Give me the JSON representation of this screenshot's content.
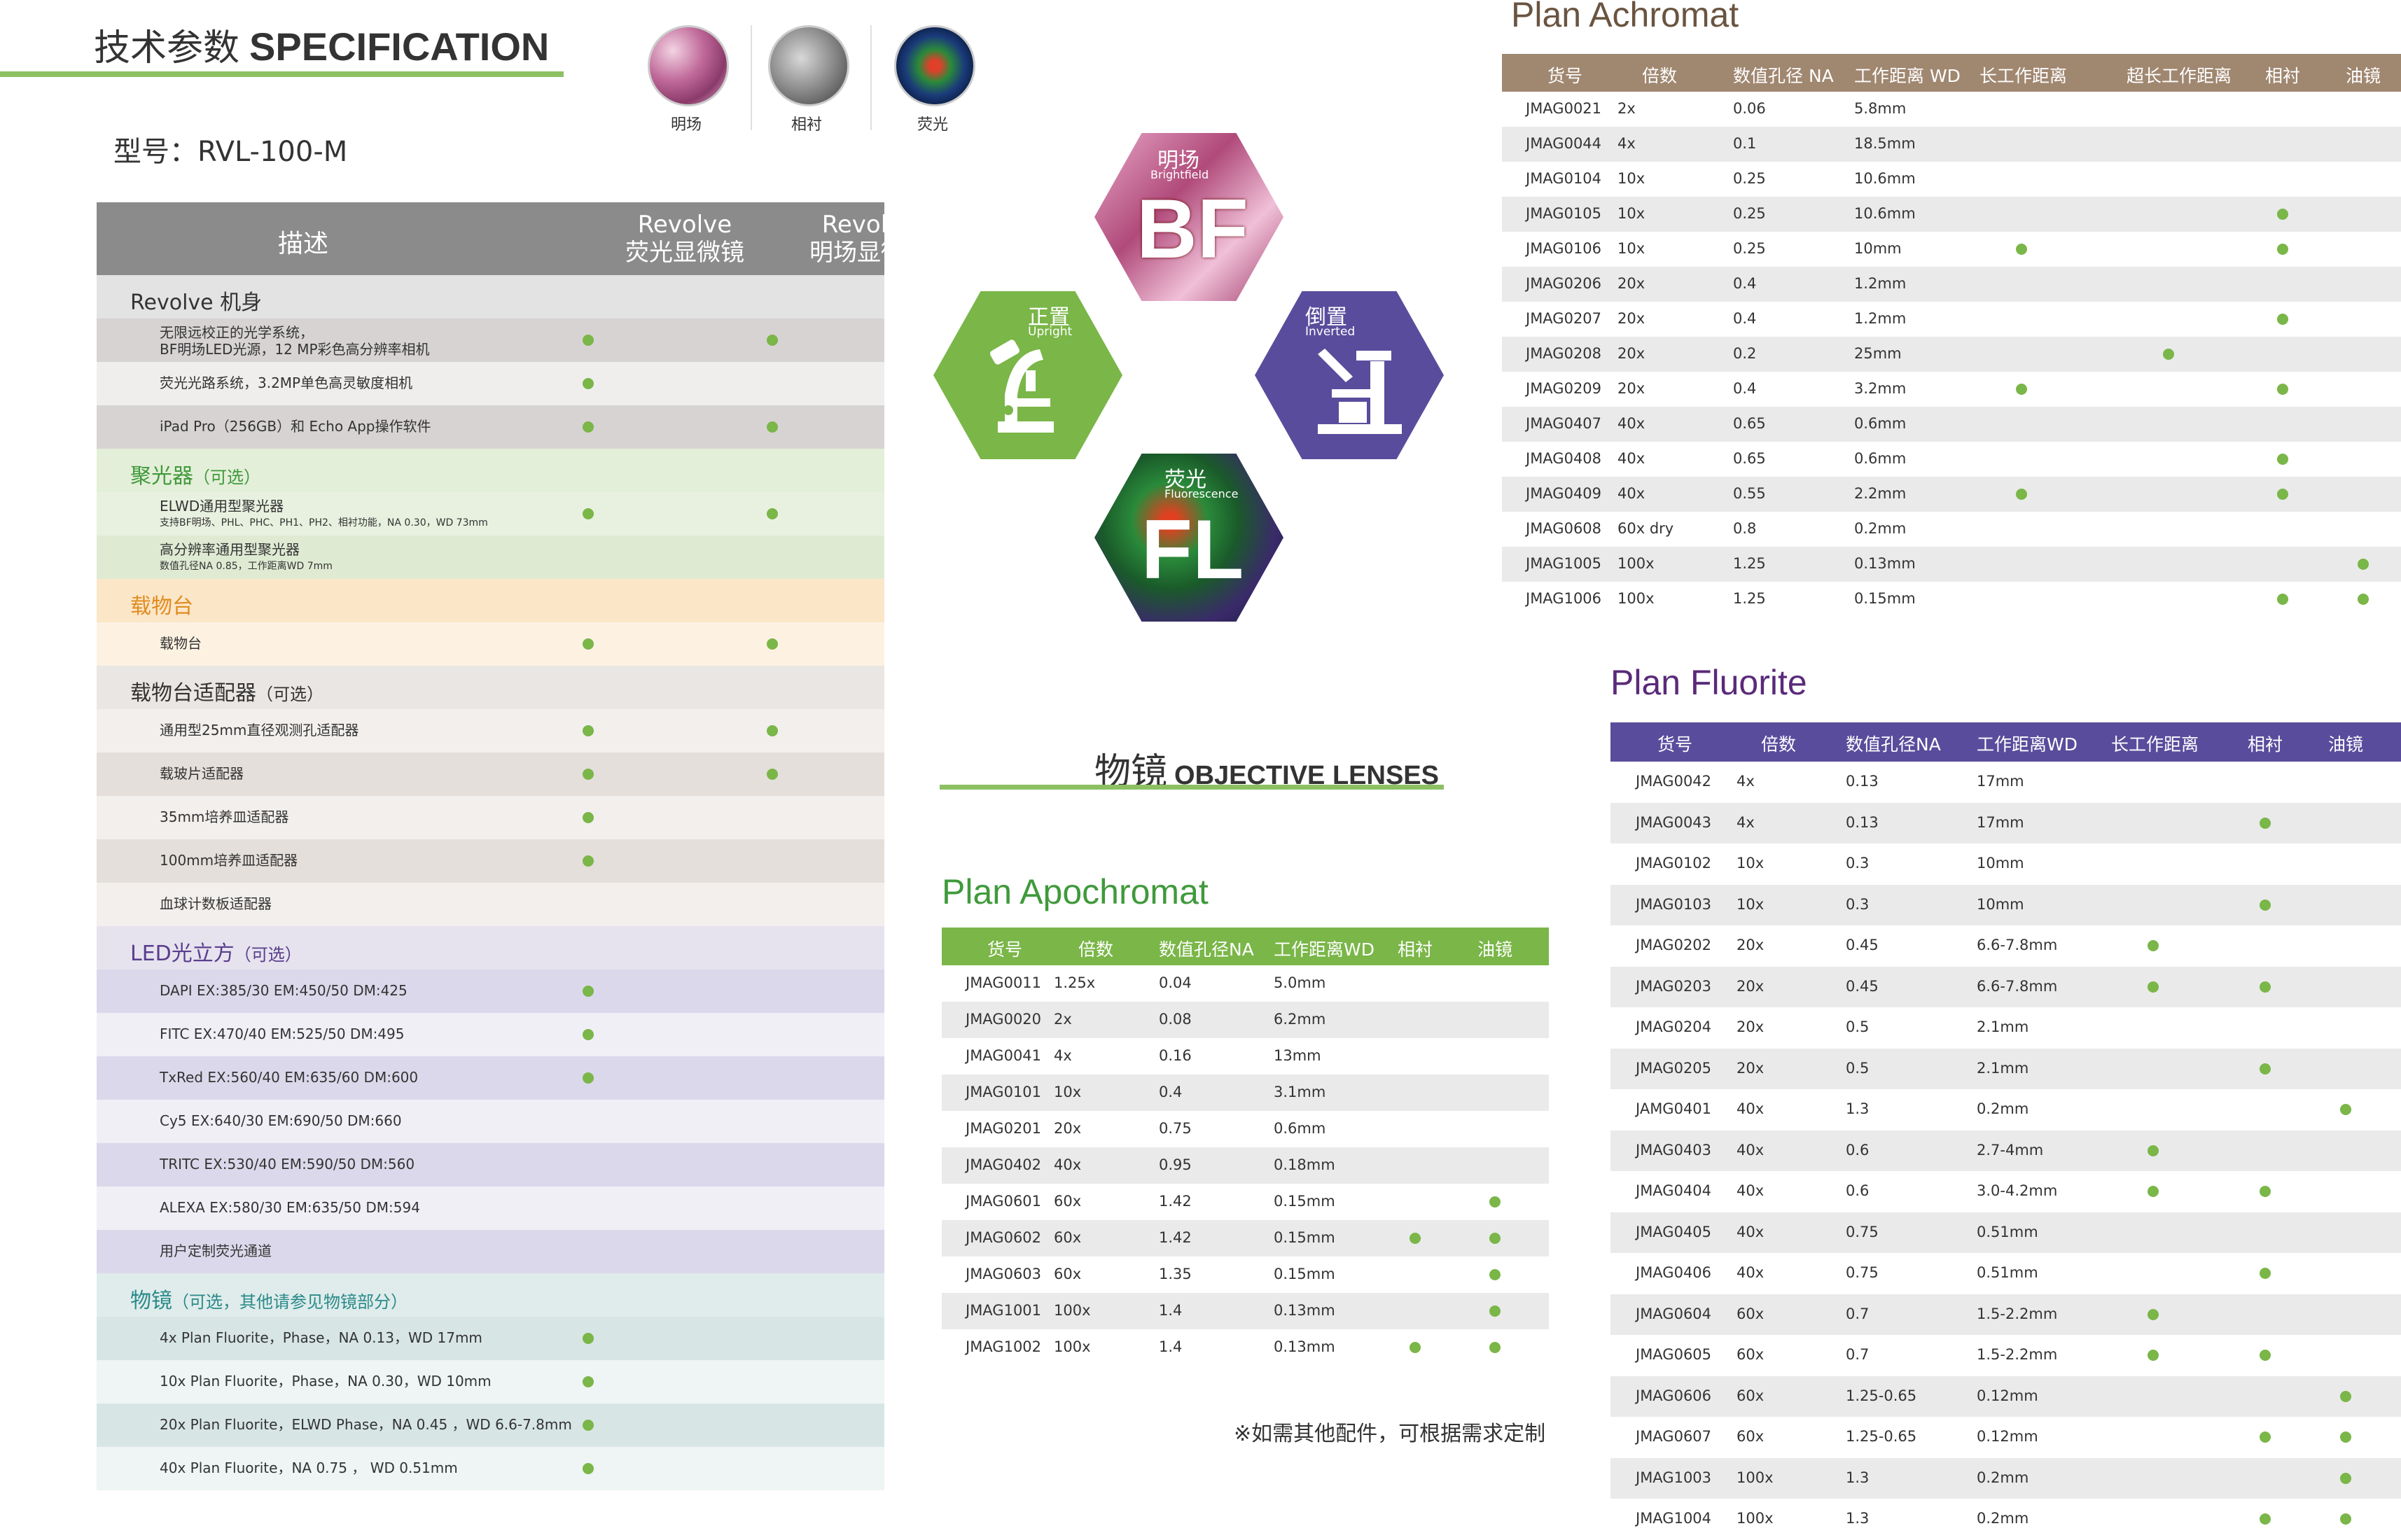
{
  "spec": {
    "title_cn": "技术参数",
    "title_en": "SPECIFICATION",
    "model": "型号：RVL-100-M",
    "modes": [
      {
        "label": "明场",
        "icon": "brightfield-sample-icon"
      },
      {
        "label": "相衬",
        "icon": "phase-contrast-sample-icon"
      },
      {
        "label": "荧光",
        "icon": "fluorescence-sample-icon"
      }
    ],
    "header": {
      "desc": "描述",
      "col1_line1": "Revolve",
      "col1_line2": "荧光显微镜",
      "col2_line1": "Revolve",
      "col2_line2": "明场显微镜"
    }
  },
  "sections": [
    {
      "title": "Revolve 机身",
      "opt": "",
      "color": "#333333",
      "bg": "#e4e3e3",
      "rows": [
        {
          "text": "无限远校正的光学系统，",
          "text2": "BF明场LED光源，12 MP彩色高分辨率相机",
          "a": true,
          "b": true
        },
        {
          "text": "荧光光路系统，3.2MP单色高灵敏度相机",
          "text2": "",
          "a": true,
          "b": false
        },
        {
          "text": "iPad Pro（256GB）和 Echo App操作软件",
          "text2": "",
          "a": true,
          "b": true
        }
      ]
    },
    {
      "title": "聚光器",
      "opt": "（可选）",
      "color": "#3f9a3b",
      "bg": "#e4efd9",
      "rows": [
        {
          "text": "ELWD通用型聚光器",
          "text2": "支持BF明场、PHL、PHC、PH1、PH2、相衬功能，NA 0.30，WD 73mm",
          "a": true,
          "b": true
        },
        {
          "text": "高分辨率通用型聚光器",
          "text2": "数值孔径NA 0.85，工作距离WD 7mm",
          "a": false,
          "b": false
        }
      ]
    },
    {
      "title": "载物台",
      "opt": "",
      "color": "#e08c20",
      "bg": "#fbe6c8",
      "rows": [
        {
          "text": "载物台",
          "text2": "",
          "a": true,
          "b": true
        }
      ]
    },
    {
      "title": "载物台适配器",
      "opt": "（可选）",
      "color": "#333333",
      "bg": "#eae6e3",
      "rows": [
        {
          "text": "通用型25mm直径观测孔适配器",
          "text2": "",
          "a": true,
          "b": true
        },
        {
          "text": "载玻片适配器",
          "text2": "",
          "a": true,
          "b": true
        },
        {
          "text": "35mm培养皿适配器",
          "text2": "",
          "a": true,
          "b": false
        },
        {
          "text": "100mm培养皿适配器",
          "text2": "",
          "a": true,
          "b": false
        },
        {
          "text": "血球计数板适配器",
          "text2": "",
          "a": false,
          "b": false
        }
      ]
    },
    {
      "title": "LED光立方",
      "opt": "（可选）",
      "color": "#5a3d8c",
      "bg": "#e6e3ef",
      "rows": [
        {
          "text": "DAPI EX:385/30 EM:450/50 DM:425",
          "text2": "",
          "a": true,
          "b": false
        },
        {
          "text": "FITC EX:470/40 EM:525/50 DM:495",
          "text2": "",
          "a": true,
          "b": false
        },
        {
          "text": "TxRed EX:560/40 EM:635/60 DM:600",
          "text2": "",
          "a": true,
          "b": false
        },
        {
          "text": "Cy5 EX:640/30 EM:690/50 DM:660",
          "text2": "",
          "a": false,
          "b": false
        },
        {
          "text": "TRITC EX:530/40 EM:590/50 DM:560",
          "text2": "",
          "a": false,
          "b": false
        },
        {
          "text": "ALEXA EX:580/30 EM:635/50 DM:594",
          "text2": "",
          "a": false,
          "b": false
        },
        {
          "text": "用户定制荧光通道",
          "text2": "",
          "a": false,
          "b": false
        }
      ]
    },
    {
      "title": "物镜",
      "opt": "（可选，其他请参见物镜部分）",
      "color": "#2a8a8a",
      "bg": "#dfeceb",
      "rows": [
        {
          "text": "4x Plan Fluorite，Phase，NA 0.13，WD 17mm",
          "text2": "",
          "a": true,
          "b": false
        },
        {
          "text": "10x Plan Fluorite，Phase，NA 0.30，WD 10mm",
          "text2": "",
          "a": true,
          "b": false
        },
        {
          "text": "20x Plan Fluorite，ELWD Phase，NA 0.45 ，WD 6.6-7.8mm",
          "text2": "",
          "a": true,
          "b": false
        },
        {
          "text": "40x Plan Fluorite，NA 0.75 ，  WD 0.51mm",
          "text2": "",
          "a": true,
          "b": false
        }
      ]
    }
  ],
  "hexagons": {
    "bf": {
      "cn": "明场",
      "en": "Brightfield",
      "big": "BF",
      "color": "#c9567e"
    },
    "upright": {
      "cn": "正置",
      "en": "Upright",
      "color": "#7ab648"
    },
    "inverted": {
      "cn": "倒置",
      "en": "Inverted",
      "color": "#5a4c9c"
    },
    "fl": {
      "cn": "荧光",
      "en": "Fluorescence",
      "big": "FL",
      "color": "#3a6a3a"
    }
  },
  "objectives": {
    "title_cn": "物镜",
    "title_en": "OBJECTIVE LENSES"
  },
  "apochromat": {
    "title": "Plan Apochromat",
    "color": "#7ab648",
    "headers": [
      "货号",
      "倍数",
      "数值孔径NA",
      "工作距离WD",
      "相衬",
      "油镜"
    ],
    "rows": [
      {
        "id": "JMAG0011",
        "mag": "1.25x",
        "na": "0.04",
        "wd": "5.0mm",
        "ph": false,
        "oil": false
      },
      {
        "id": "JMAG0020",
        "mag": "2x",
        "na": "0.08",
        "wd": "6.2mm",
        "ph": false,
        "oil": false
      },
      {
        "id": "JMAG0041",
        "mag": "4x",
        "na": "0.16",
        "wd": "13mm",
        "ph": false,
        "oil": false
      },
      {
        "id": "JMAG0101",
        "mag": "10x",
        "na": "0.4",
        "wd": "3.1mm",
        "ph": false,
        "oil": false
      },
      {
        "id": "JMAG0201",
        "mag": "20x",
        "na": "0.75",
        "wd": "0.6mm",
        "ph": false,
        "oil": false
      },
      {
        "id": "JMAG0402",
        "mag": "40x",
        "na": "0.95",
        "wd": "0.18mm",
        "ph": false,
        "oil": false
      },
      {
        "id": "JMAG0601",
        "mag": "60x",
        "na": "1.42",
        "wd": "0.15mm",
        "ph": false,
        "oil": true
      },
      {
        "id": "JMAG0602",
        "mag": "60x",
        "na": "1.42",
        "wd": "0.15mm",
        "ph": true,
        "oil": true
      },
      {
        "id": "JMAG0603",
        "mag": "60x",
        "na": "1.35",
        "wd": "0.15mm",
        "ph": false,
        "oil": true
      },
      {
        "id": "JMAG1001",
        "mag": "100x",
        "na": "1.4",
        "wd": "0.13mm",
        "ph": false,
        "oil": true
      },
      {
        "id": "JMAG1002",
        "mag": "100x",
        "na": "1.4",
        "wd": "0.13mm",
        "ph": true,
        "oil": true
      }
    ]
  },
  "note": "※如需其他配件，可根据需求定制",
  "achromat": {
    "title": "Plan Achromat",
    "color": "#a08770",
    "headers": [
      "货号",
      "倍数",
      "数值孔径 NA",
      "工作距离 WD",
      "长工作距离",
      "超长工作距离",
      "相衬",
      "油镜"
    ],
    "rows": [
      {
        "id": "JMAG0021",
        "mag": "2x",
        "na": "0.06",
        "wd": "5.8mm",
        "lwd": false,
        "elwd": false,
        "ph": false,
        "oil": false
      },
      {
        "id": "JMAG0044",
        "mag": "4x",
        "na": "0.1",
        "wd": "18.5mm",
        "lwd": false,
        "elwd": false,
        "ph": false,
        "oil": false
      },
      {
        "id": "JMAG0104",
        "mag": "10x",
        "na": "0.25",
        "wd": "10.6mm",
        "lwd": false,
        "elwd": false,
        "ph": false,
        "oil": false
      },
      {
        "id": "JMAG0105",
        "mag": "10x",
        "na": "0.25",
        "wd": "10.6mm",
        "lwd": false,
        "elwd": false,
        "ph": true,
        "oil": false
      },
      {
        "id": "JMAG0106",
        "mag": "10x",
        "na": "0.25",
        "wd": "10mm",
        "lwd": true,
        "elwd": false,
        "ph": true,
        "oil": false
      },
      {
        "id": "JMAG0206",
        "mag": "20x",
        "na": "0.4",
        "wd": "1.2mm",
        "lwd": false,
        "elwd": false,
        "ph": false,
        "oil": false
      },
      {
        "id": "JMAG0207",
        "mag": "20x",
        "na": "0.4",
        "wd": "1.2mm",
        "lwd": false,
        "elwd": false,
        "ph": true,
        "oil": false
      },
      {
        "id": "JMAG0208",
        "mag": "20x",
        "na": "0.2",
        "wd": "25mm",
        "lwd": false,
        "elwd": true,
        "ph": false,
        "oil": false
      },
      {
        "id": "JMAG0209",
        "mag": "20x",
        "na": "0.4",
        "wd": "3.2mm",
        "lwd": true,
        "elwd": false,
        "ph": true,
        "oil": false
      },
      {
        "id": "JMAG0407",
        "mag": "40x",
        "na": "0.65",
        "wd": "0.6mm",
        "lwd": false,
        "elwd": false,
        "ph": false,
        "oil": false
      },
      {
        "id": "JMAG0408",
        "mag": "40x",
        "na": "0.65",
        "wd": "0.6mm",
        "lwd": false,
        "elwd": false,
        "ph": true,
        "oil": false
      },
      {
        "id": "JMAG0409",
        "mag": "40x",
        "na": "0.55",
        "wd": "2.2mm",
        "lwd": true,
        "elwd": false,
        "ph": true,
        "oil": false
      },
      {
        "id": "JMAG0608",
        "mag": "60x dry",
        "na": "0.8",
        "wd": "0.2mm",
        "lwd": false,
        "elwd": false,
        "ph": false,
        "oil": false
      },
      {
        "id": "JMAG1005",
        "mag": "100x",
        "na": "1.25",
        "wd": "0.13mm",
        "lwd": false,
        "elwd": false,
        "ph": false,
        "oil": true
      },
      {
        "id": "JMAG1006",
        "mag": "100x",
        "na": "1.25",
        "wd": "0.15mm",
        "lwd": false,
        "elwd": false,
        "ph": true,
        "oil": true
      }
    ]
  },
  "fluorite": {
    "title": "Plan Fluorite",
    "color": "#5a4c9c",
    "headers": [
      "货号",
      "倍数",
      "数值孔径NA",
      "工作距离WD",
      "长工作距离",
      "相衬",
      "油镜"
    ],
    "rows": [
      {
        "id": "JMAG0042",
        "mag": "4x",
        "na": "0.13",
        "wd": "17mm",
        "lwd": false,
        "ph": false,
        "oil": false
      },
      {
        "id": "JMAG0043",
        "mag": "4x",
        "na": "0.13",
        "wd": "17mm",
        "lwd": false,
        "ph": true,
        "oil": false
      },
      {
        "id": "JMAG0102",
        "mag": "10x",
        "na": "0.3",
        "wd": "10mm",
        "lwd": false,
        "ph": false,
        "oil": false
      },
      {
        "id": "JMAG0103",
        "mag": "10x",
        "na": "0.3",
        "wd": "10mm",
        "lwd": false,
        "ph": true,
        "oil": false
      },
      {
        "id": "JMAG0202",
        "mag": "20x",
        "na": "0.45",
        "wd": "6.6-7.8mm",
        "lwd": true,
        "ph": false,
        "oil": false
      },
      {
        "id": "JMAG0203",
        "mag": "20x",
        "na": "0.45",
        "wd": "6.6-7.8mm",
        "lwd": true,
        "ph": true,
        "oil": false
      },
      {
        "id": "JMAG0204",
        "mag": "20x",
        "na": "0.5",
        "wd": "2.1mm",
        "lwd": false,
        "ph": false,
        "oil": false
      },
      {
        "id": "JMAG0205",
        "mag": "20x",
        "na": "0.5",
        "wd": "2.1mm",
        "lwd": false,
        "ph": true,
        "oil": false
      },
      {
        "id": "JAMG0401",
        "mag": "40x",
        "na": "1.3",
        "wd": "0.2mm",
        "lwd": false,
        "ph": false,
        "oil": true
      },
      {
        "id": "JMAG0403",
        "mag": "40x",
        "na": "0.6",
        "wd": "2.7-4mm",
        "lwd": true,
        "ph": false,
        "oil": false
      },
      {
        "id": "JMAG0404",
        "mag": "40x",
        "na": "0.6",
        "wd": "3.0-4.2mm",
        "lwd": true,
        "ph": true,
        "oil": false
      },
      {
        "id": "JMAG0405",
        "mag": "40x",
        "na": "0.75",
        "wd": "0.51mm",
        "lwd": false,
        "ph": false,
        "oil": false
      },
      {
        "id": "JMAG0406",
        "mag": "40x",
        "na": "0.75",
        "wd": "0.51mm",
        "lwd": false,
        "ph": true,
        "oil": false
      },
      {
        "id": "JMAG0604",
        "mag": "60x",
        "na": "0.7",
        "wd": "1.5-2.2mm",
        "lwd": true,
        "ph": false,
        "oil": false
      },
      {
        "id": "JMAG0605",
        "mag": "60x",
        "na": "0.7",
        "wd": "1.5-2.2mm",
        "lwd": true,
        "ph": true,
        "oil": false
      },
      {
        "id": "JMAG0606",
        "mag": "60x",
        "na": "1.25-0.65",
        "wd": "0.12mm",
        "lwd": false,
        "ph": false,
        "oil": true
      },
      {
        "id": "JMAG0607",
        "mag": "60x",
        "na": "1.25-0.65",
        "wd": "0.12mm",
        "lwd": false,
        "ph": true,
        "oil": true
      },
      {
        "id": "JMAG1003",
        "mag": "100x",
        "na": "1.3",
        "wd": "0.2mm",
        "lwd": false,
        "ph": false,
        "oil": true
      },
      {
        "id": "JMAG1004",
        "mag": "100x",
        "na": "1.3",
        "wd": "0.2mm",
        "lwd": false,
        "ph": true,
        "oil": true
      }
    ]
  }
}
